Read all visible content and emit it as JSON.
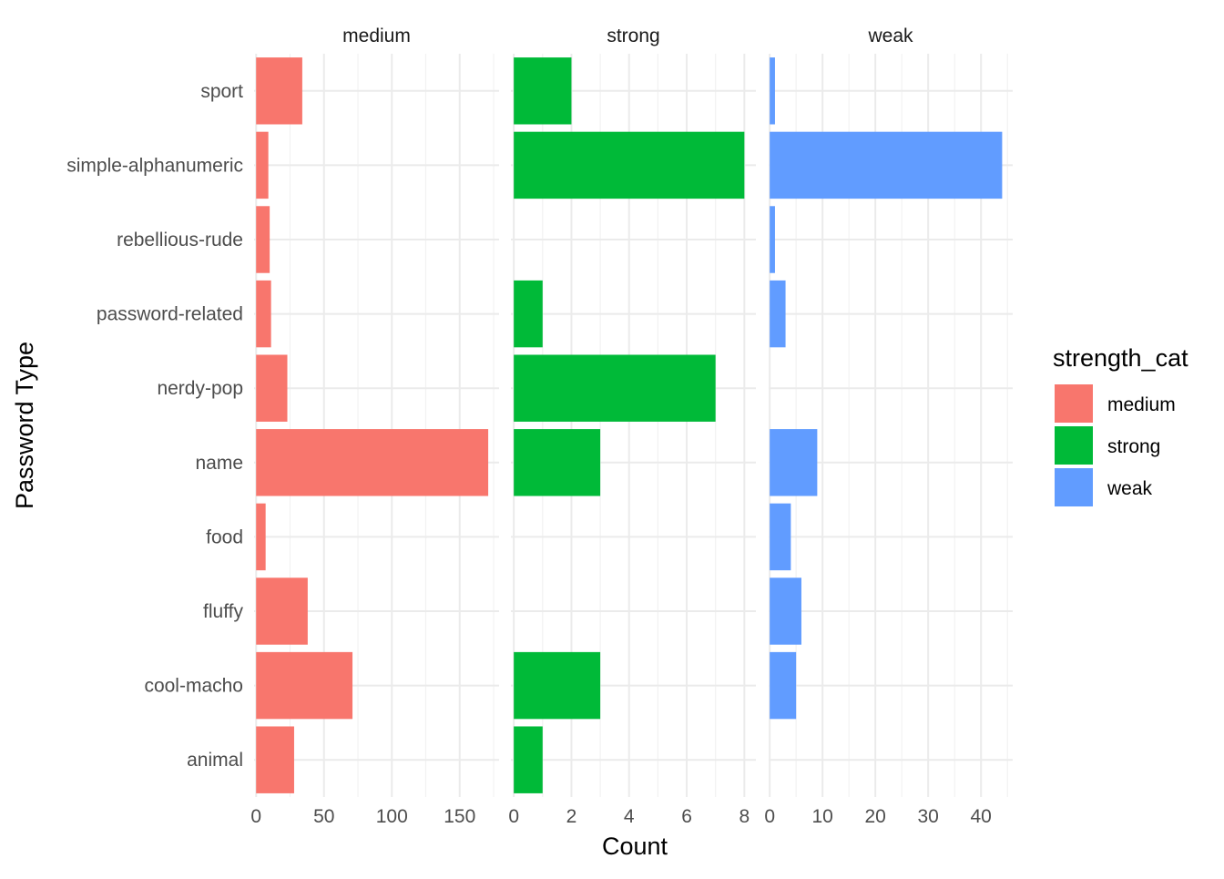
{
  "chart_data": {
    "type": "bar",
    "orientation": "horizontal",
    "faceted_by": "strength_cat",
    "xlabel": "Count",
    "ylabel": "Password Type",
    "categories": [
      "animal",
      "cool-macho",
      "fluffy",
      "food",
      "name",
      "nerdy-pop",
      "password-related",
      "rebellious-rude",
      "simple-alphanumeric",
      "sport"
    ],
    "grid": true,
    "legend": {
      "title": "strength_cat",
      "position": "right",
      "entries": [
        {
          "label": "medium",
          "color": "#F8766D"
        },
        {
          "label": "strong",
          "color": "#00BA38"
        },
        {
          "label": "weak",
          "color": "#619CFF"
        }
      ]
    },
    "facets": [
      {
        "name": "medium",
        "color": "#F8766D",
        "xlim": [
          -1.5,
          179
        ],
        "x_ticks": [
          0,
          50,
          100,
          150
        ],
        "x_tick_labels": [
          "0",
          "50",
          "100",
          "150"
        ],
        "values": [
          28,
          71,
          38,
          7,
          171,
          23,
          11,
          10,
          9,
          34
        ]
      },
      {
        "name": "strong",
        "color": "#00BA38",
        "xlim": [
          -0.1,
          8.4
        ],
        "x_ticks": [
          0,
          2,
          4,
          6,
          8
        ],
        "x_tick_labels": [
          "0",
          "2",
          "4",
          "6",
          "8"
        ],
        "values": [
          1,
          3,
          null,
          null,
          3,
          7,
          1,
          null,
          8,
          2
        ]
      },
      {
        "name": "weak",
        "color": "#619CFF",
        "xlim": [
          -0.2,
          46
        ],
        "x_ticks": [
          0,
          10,
          20,
          30,
          40
        ],
        "x_tick_labels": [
          "0",
          "10",
          "20",
          "30",
          "40"
        ],
        "values": [
          null,
          5,
          6,
          4,
          9,
          null,
          3,
          1,
          44,
          1
        ]
      }
    ]
  }
}
